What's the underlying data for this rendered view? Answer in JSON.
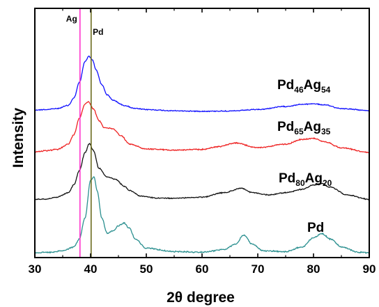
{
  "chart_data": {
    "type": "line",
    "xlabel": "2θ degree",
    "ylabel": "Intensity",
    "xlim": [
      30,
      90
    ],
    "xticks": [
      30,
      40,
      50,
      60,
      70,
      80,
      90
    ],
    "yticks_shown": false,
    "legend": "inline labels to the right of each curve",
    "reference_lines": [
      {
        "label": "Ag",
        "x": 38.1,
        "color": "#ff33cc"
      },
      {
        "label": "Pd",
        "x": 40.1,
        "color": "#6b6b1f"
      }
    ],
    "series": [
      {
        "name": "Pd46Ag54",
        "label_parts": [
          [
            "Pd",
            ""
          ],
          [
            "46",
            "sub"
          ],
          [
            "Ag",
            ""
          ],
          [
            "54",
            "sub"
          ]
        ],
        "color": "#1010ff",
        "x": [
          30,
          32,
          34,
          36,
          37,
          38,
          39,
          39.7,
          40.3,
          41,
          42,
          43,
          44,
          46,
          48,
          50,
          55,
          60,
          65,
          70,
          75,
          78,
          80,
          82,
          85,
          90
        ],
        "y": [
          0.88,
          0.9,
          0.95,
          1.1,
          1.45,
          2.2,
          3.2,
          3.45,
          3.3,
          2.8,
          2.1,
          1.6,
          1.35,
          1.1,
          0.95,
          0.9,
          0.84,
          0.82,
          0.83,
          0.9,
          1.05,
          1.15,
          1.18,
          1.12,
          0.95,
          0.85
        ]
      },
      {
        "name": "Pd65Ag35",
        "label_parts": [
          [
            "Pd",
            ""
          ],
          [
            "65",
            "sub"
          ],
          [
            "Ag",
            ""
          ],
          [
            "35",
            "sub"
          ]
        ],
        "color": "#ee2222",
        "x": [
          30,
          32,
          34,
          36,
          37,
          38,
          39,
          39.6,
          40.5,
          41.5,
          42.5,
          44,
          45.5,
          47,
          50,
          55,
          60,
          63,
          66,
          70,
          75,
          78,
          80,
          82,
          85,
          90
        ],
        "y": [
          0.88,
          0.92,
          0.98,
          1.2,
          1.6,
          2.3,
          2.9,
          3.0,
          2.7,
          2.2,
          1.9,
          1.85,
          1.55,
          1.2,
          1.0,
          0.95,
          0.98,
          1.1,
          1.25,
          1.05,
          1.2,
          1.4,
          1.45,
          1.3,
          1.05,
          0.85
        ]
      },
      {
        "name": "Pd80Ag20",
        "label_parts": [
          [
            "Pd",
            ""
          ],
          [
            "80",
            "sub"
          ],
          [
            "Ag",
            ""
          ],
          [
            "20",
            "sub"
          ]
        ],
        "color": "#111111",
        "x": [
          30,
          32,
          34,
          36,
          37,
          38,
          39,
          39.8,
          40.5,
          41.5,
          43,
          44.5,
          46,
          47,
          49,
          52,
          55,
          60,
          64,
          67,
          69,
          72,
          75,
          78,
          80,
          81.5,
          83,
          86,
          90
        ],
        "y": [
          0.9,
          0.92,
          1.0,
          1.2,
          1.55,
          2.2,
          3.0,
          3.4,
          3.1,
          2.3,
          1.9,
          1.8,
          1.5,
          1.3,
          1.05,
          0.95,
          0.95,
          1.0,
          1.2,
          1.4,
          1.2,
          1.1,
          1.2,
          1.35,
          1.55,
          1.6,
          1.45,
          1.1,
          0.9
        ]
      },
      {
        "name": "Pd",
        "label_parts": [
          [
            "Pd",
            ""
          ]
        ],
        "color": "#2a8f8f",
        "x": [
          30,
          33,
          35,
          37,
          38,
          39,
          40,
          40.6,
          41.2,
          42,
          43,
          44,
          45,
          46,
          47,
          48,
          50,
          55,
          60,
          64,
          66,
          67.5,
          69,
          71,
          75,
          78,
          80,
          81.5,
          83,
          85,
          88,
          90
        ],
        "y": [
          0.88,
          0.9,
          0.95,
          1.1,
          1.4,
          2.2,
          3.6,
          3.75,
          3.2,
          2.2,
          1.6,
          1.7,
          1.9,
          2.0,
          1.8,
          1.4,
          1.05,
          0.92,
          0.9,
          1.0,
          1.2,
          1.55,
          1.2,
          0.95,
          0.92,
          1.1,
          1.45,
          1.6,
          1.4,
          1.1,
          0.9,
          0.88
        ]
      }
    ]
  }
}
